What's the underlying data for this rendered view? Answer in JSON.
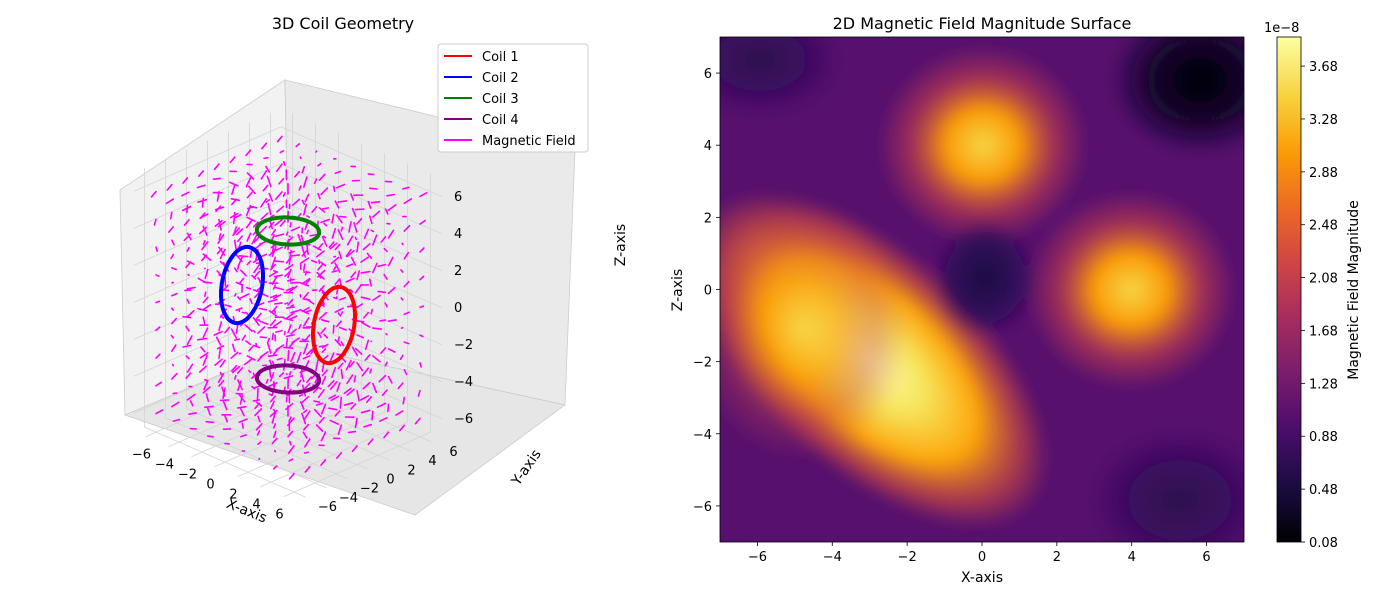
{
  "chart_data": [
    {
      "type": "scatter",
      "subtype": "3d-line-quiver",
      "title": "3D Coil Geometry",
      "xlabel": "X-axis",
      "ylabel": "Y-axis",
      "zlabel": "Z-axis",
      "xlim": [
        -7,
        7
      ],
      "ylim": [
        -7,
        7
      ],
      "zlim": [
        -7,
        7
      ],
      "xticks": [
        "−6",
        "−4",
        "−2",
        "0",
        "2",
        "4",
        "6"
      ],
      "yticks": [
        "−6",
        "−4",
        "−2",
        "0",
        "2",
        "4",
        "6"
      ],
      "zticks": [
        "−6",
        "−4",
        "−2",
        "0",
        "2",
        "4",
        "6"
      ],
      "legend_position": "top-right",
      "series": [
        {
          "name": "Coil 1",
          "color": "#ff0000",
          "shape": "circle",
          "radius": 2,
          "center": [
            4,
            0,
            0
          ],
          "plane": "yz"
        },
        {
          "name": "Coil 2",
          "color": "#0000ff",
          "shape": "circle",
          "radius": 2,
          "center": [
            -4,
            0,
            0
          ],
          "plane": "yz"
        },
        {
          "name": "Coil 3",
          "color": "#008000",
          "shape": "circle",
          "radius": 2,
          "center": [
            0,
            0,
            4
          ],
          "plane": "xy"
        },
        {
          "name": "Coil 4",
          "color": "#800080",
          "shape": "circle",
          "radius": 2,
          "center": [
            0,
            0,
            -4
          ],
          "plane": "xy"
        },
        {
          "name": "Magnetic Field",
          "color": "#ff00ff",
          "kind": "quiver",
          "grid_range": [
            -6,
            6
          ]
        }
      ]
    },
    {
      "type": "heatmap",
      "title": "2D Magnetic Field Magnitude Surface",
      "xlabel": "X-axis",
      "ylabel": "Z-axis",
      "xlim": [
        -7,
        7
      ],
      "ylim": [
        -7,
        7
      ],
      "xticks": [
        "−6",
        "−4",
        "−2",
        "0",
        "2",
        "4",
        "6"
      ],
      "yticks": [
        "−6",
        "−4",
        "−2",
        "0",
        "2",
        "4",
        "6"
      ],
      "colormap": "inferno",
      "colorbar": {
        "label": "Magnetic Field Magnitude",
        "exponent": "1e−8",
        "min": 0.08,
        "max": 3.9,
        "ticks": [
          "0.08",
          "0.48",
          "0.88",
          "1.28",
          "1.68",
          "2.08",
          "2.48",
          "2.88",
          "3.28",
          "3.68"
        ]
      },
      "features": [
        {
          "x": 0,
          "z": 4,
          "value": 3.0,
          "desc": "peak"
        },
        {
          "x": 4,
          "z": 0,
          "value": 3.0,
          "desc": "peak"
        },
        {
          "x": -4,
          "z": -1,
          "value": 3.8,
          "desc": "peak"
        },
        {
          "x": -1,
          "z": -3.6,
          "value": 3.8,
          "desc": "peak"
        },
        {
          "x": 0,
          "z": 0,
          "value": 0.5,
          "desc": "minimum"
        },
        {
          "x": 5.5,
          "z": 5.5,
          "value": 0.1,
          "desc": "minimum"
        }
      ]
    }
  ]
}
